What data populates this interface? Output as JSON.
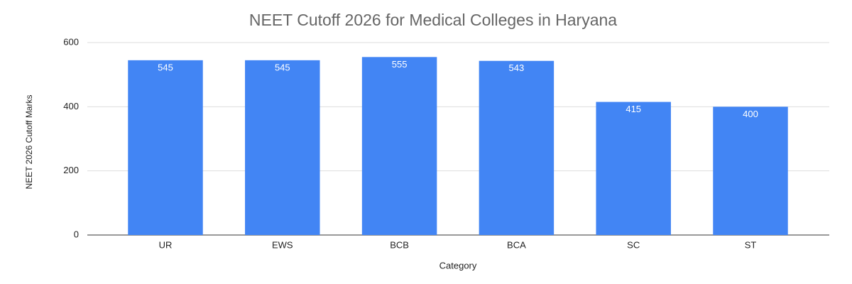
{
  "chart_data": {
    "type": "bar",
    "title": "NEET Cutoff 2026 for Medical Colleges in Haryana",
    "x_label": "Category",
    "y_label": "NEET 2026 Cutoff Marks",
    "categories": [
      "UR",
      "EWS",
      "BCB",
      "BCA",
      "SC",
      "ST"
    ],
    "values": [
      545,
      545,
      555,
      543,
      415,
      400
    ],
    "color": "#4285f4",
    "ylim": [
      0,
      600
    ],
    "yticks": [
      0,
      200,
      400,
      600
    ],
    "grid": true
  }
}
